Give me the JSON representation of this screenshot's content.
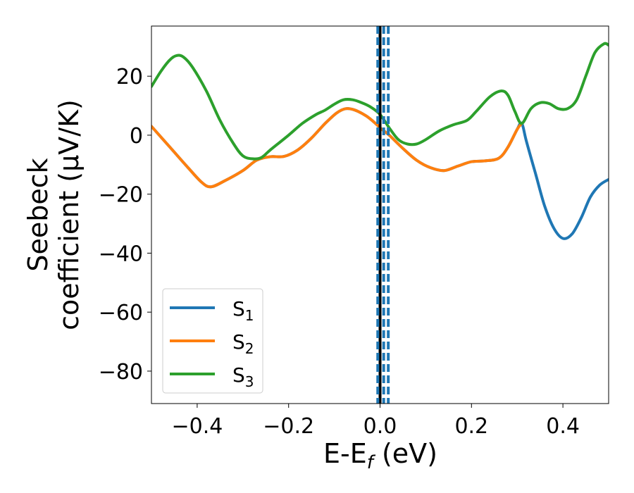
{
  "chart_data": {
    "type": "line",
    "title": "",
    "xlabel": "E-E",
    "xlabel_sub": "f",
    "xlabel_unit": " (eV)",
    "ylabel_line1": "Seebeck",
    "ylabel_line2": "coefficient  (μV/K)",
    "xlim": [
      -0.5,
      0.5
    ],
    "ylim": [
      -91,
      37
    ],
    "xticks": [
      -0.4,
      -0.2,
      0.0,
      0.2,
      0.4
    ],
    "xtick_labels": [
      "−0.4",
      "−0.2",
      "0.0",
      "0.2",
      "0.4"
    ],
    "yticks": [
      20,
      0,
      -20,
      -40,
      -60,
      -80
    ],
    "ytick_labels": [
      "20",
      "0",
      "−20",
      "−40",
      "−60",
      "−80"
    ],
    "grid": false,
    "legend_position": "lower-left",
    "vertical_lines": [
      {
        "x": 0.0,
        "color": "#000000",
        "style": "solid"
      },
      {
        "x": -0.005,
        "color": "#1f77b4",
        "style": "dashed"
      },
      {
        "x": 0.008,
        "color": "#1f77b4",
        "style": "dashed"
      },
      {
        "x": 0.018,
        "color": "#1f77b4",
        "style": "dashed"
      }
    ],
    "series": [
      {
        "name": "S",
        "sub": "1",
        "color": "#1f77b4",
        "points": [
          [
            -0.5,
            3
          ],
          [
            -0.46,
            -4
          ],
          [
            -0.42,
            -11
          ],
          [
            -0.39,
            -16
          ],
          [
            -0.37,
            -17.5
          ],
          [
            -0.34,
            -15.5
          ],
          [
            -0.3,
            -12
          ],
          [
            -0.27,
            -8.5
          ],
          [
            -0.24,
            -7.3
          ],
          [
            -0.21,
            -7.2
          ],
          [
            -0.18,
            -5
          ],
          [
            -0.15,
            -1
          ],
          [
            -0.12,
            4
          ],
          [
            -0.095,
            7.5
          ],
          [
            -0.075,
            9
          ],
          [
            -0.055,
            8.5
          ],
          [
            -0.03,
            6.5
          ],
          [
            -0.01,
            4
          ],
          [
            0.0,
            2.5
          ],
          [
            0.02,
            0
          ],
          [
            0.05,
            -4.5
          ],
          [
            0.08,
            -8.5
          ],
          [
            0.11,
            -11
          ],
          [
            0.14,
            -12
          ],
          [
            0.17,
            -10.5
          ],
          [
            0.2,
            -9
          ],
          [
            0.23,
            -8.7
          ],
          [
            0.26,
            -7.8
          ],
          [
            0.28,
            -4
          ],
          [
            0.3,
            2
          ],
          [
            0.31,
            4
          ],
          [
            0.32,
            -2
          ],
          [
            0.34,
            -13
          ],
          [
            0.36,
            -24
          ],
          [
            0.38,
            -31.5
          ],
          [
            0.4,
            -35
          ],
          [
            0.42,
            -33.5
          ],
          [
            0.44,
            -28
          ],
          [
            0.46,
            -21
          ],
          [
            0.48,
            -17
          ],
          [
            0.5,
            -15
          ]
        ]
      },
      {
        "name": "S",
        "sub": "2",
        "color": "#ff7f0e",
        "points": [
          [
            -0.5,
            3
          ],
          [
            -0.46,
            -4
          ],
          [
            -0.42,
            -11
          ],
          [
            -0.39,
            -16
          ],
          [
            -0.37,
            -17.5
          ],
          [
            -0.34,
            -15.5
          ],
          [
            -0.3,
            -12
          ],
          [
            -0.27,
            -8.5
          ],
          [
            -0.24,
            -7.3
          ],
          [
            -0.21,
            -7.2
          ],
          [
            -0.18,
            -5
          ],
          [
            -0.15,
            -1
          ],
          [
            -0.12,
            4
          ],
          [
            -0.095,
            7.5
          ],
          [
            -0.075,
            9
          ],
          [
            -0.055,
            8.5
          ],
          [
            -0.03,
            6.5
          ],
          [
            -0.01,
            4
          ],
          [
            0.0,
            2.5
          ],
          [
            0.02,
            0
          ],
          [
            0.05,
            -4.5
          ],
          [
            0.08,
            -8.5
          ],
          [
            0.11,
            -11
          ],
          [
            0.14,
            -12
          ],
          [
            0.17,
            -10.5
          ],
          [
            0.2,
            -9
          ],
          [
            0.23,
            -8.7
          ],
          [
            0.26,
            -7.8
          ],
          [
            0.28,
            -4
          ],
          [
            0.3,
            2
          ],
          [
            0.31,
            4
          ]
        ]
      },
      {
        "name": "S",
        "sub": "3",
        "color": "#2ca02c",
        "points": [
          [
            -0.5,
            16.5
          ],
          [
            -0.48,
            21.5
          ],
          [
            -0.46,
            25.5
          ],
          [
            -0.445,
            27
          ],
          [
            -0.43,
            26.5
          ],
          [
            -0.41,
            23
          ],
          [
            -0.38,
            15
          ],
          [
            -0.35,
            5
          ],
          [
            -0.32,
            -3
          ],
          [
            -0.3,
            -7
          ],
          [
            -0.28,
            -8
          ],
          [
            -0.26,
            -7.6
          ],
          [
            -0.24,
            -5
          ],
          [
            -0.2,
            0
          ],
          [
            -0.17,
            4
          ],
          [
            -0.14,
            7
          ],
          [
            -0.12,
            8.5
          ],
          [
            -0.1,
            10.5
          ],
          [
            -0.08,
            12
          ],
          [
            -0.06,
            12
          ],
          [
            -0.04,
            11
          ],
          [
            -0.02,
            9.5
          ],
          [
            0.0,
            7
          ],
          [
            0.02,
            2.5
          ],
          [
            0.04,
            -1.5
          ],
          [
            0.06,
            -3
          ],
          [
            0.08,
            -3
          ],
          [
            0.1,
            -1.5
          ],
          [
            0.13,
            1.5
          ],
          [
            0.16,
            3.5
          ],
          [
            0.19,
            5
          ],
          [
            0.21,
            8
          ],
          [
            0.24,
            13
          ],
          [
            0.265,
            15
          ],
          [
            0.28,
            13.5
          ],
          [
            0.295,
            8
          ],
          [
            0.31,
            4
          ],
          [
            0.33,
            9
          ],
          [
            0.35,
            11
          ],
          [
            0.37,
            10.7
          ],
          [
            0.39,
            9
          ],
          [
            0.41,
            9
          ],
          [
            0.43,
            12
          ],
          [
            0.45,
            20
          ],
          [
            0.47,
            28
          ],
          [
            0.49,
            31
          ],
          [
            0.5,
            30.5
          ]
        ]
      }
    ]
  }
}
